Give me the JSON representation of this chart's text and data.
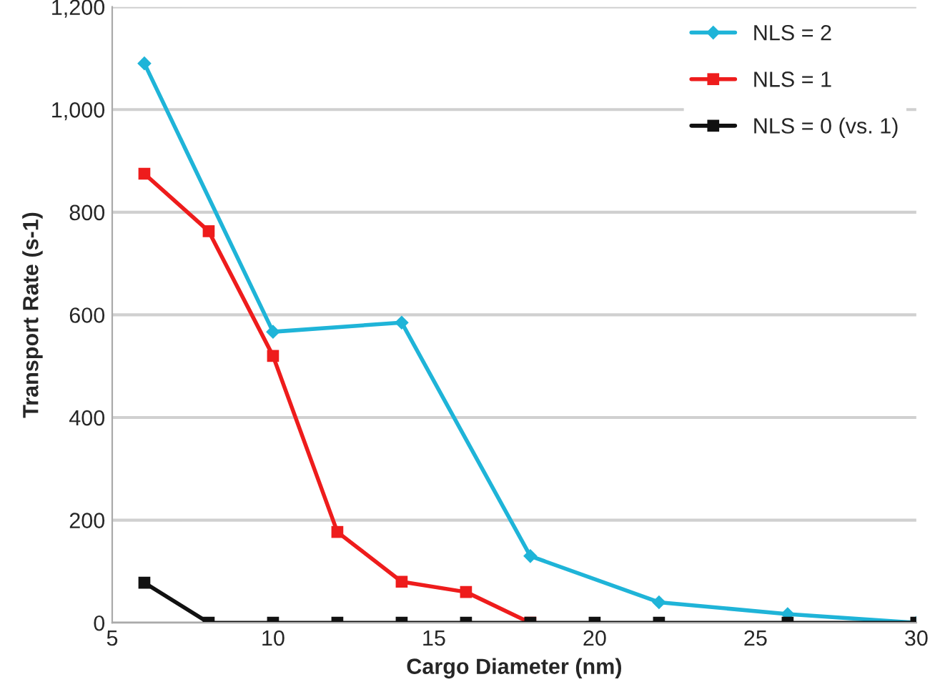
{
  "chart_data": {
    "type": "line",
    "xlabel": "Cargo Diameter (nm)",
    "ylabel": "Transport Rate (s-1)",
    "xlim": [
      5,
      30
    ],
    "xticks": [
      5,
      10,
      15,
      20,
      25,
      30
    ],
    "ylim": [
      0,
      1200
    ],
    "yticks": [
      0,
      200,
      400,
      600,
      800,
      {
        "value": 1000,
        "label": "1,000"
      },
      {
        "value": 1200,
        "label": "1,200"
      }
    ],
    "grid": "y",
    "legend": "top right",
    "series": [
      {
        "name": "NLS = 2",
        "color": "#1fb4d8",
        "marker": "diamond",
        "x": [
          6,
          10,
          14,
          18,
          22,
          26,
          30
        ],
        "values": [
          1090,
          567,
          585,
          130,
          40,
          17,
          0
        ]
      },
      {
        "name": "NLS = 1",
        "color": "#ee1c1c",
        "marker": "square",
        "x": [
          6,
          8,
          10,
          12,
          14,
          16,
          18
        ],
        "values": [
          875,
          763,
          520,
          177,
          80,
          60,
          0
        ]
      },
      {
        "name": "NLS = 0 (vs. 1)",
        "color": "#111111",
        "marker": "square",
        "x": [
          6,
          8,
          10,
          12,
          14,
          16,
          18,
          20,
          22,
          26,
          30
        ],
        "values": [
          78,
          0,
          0,
          0,
          0,
          0,
          0,
          0,
          0,
          0,
          0
        ]
      }
    ]
  }
}
